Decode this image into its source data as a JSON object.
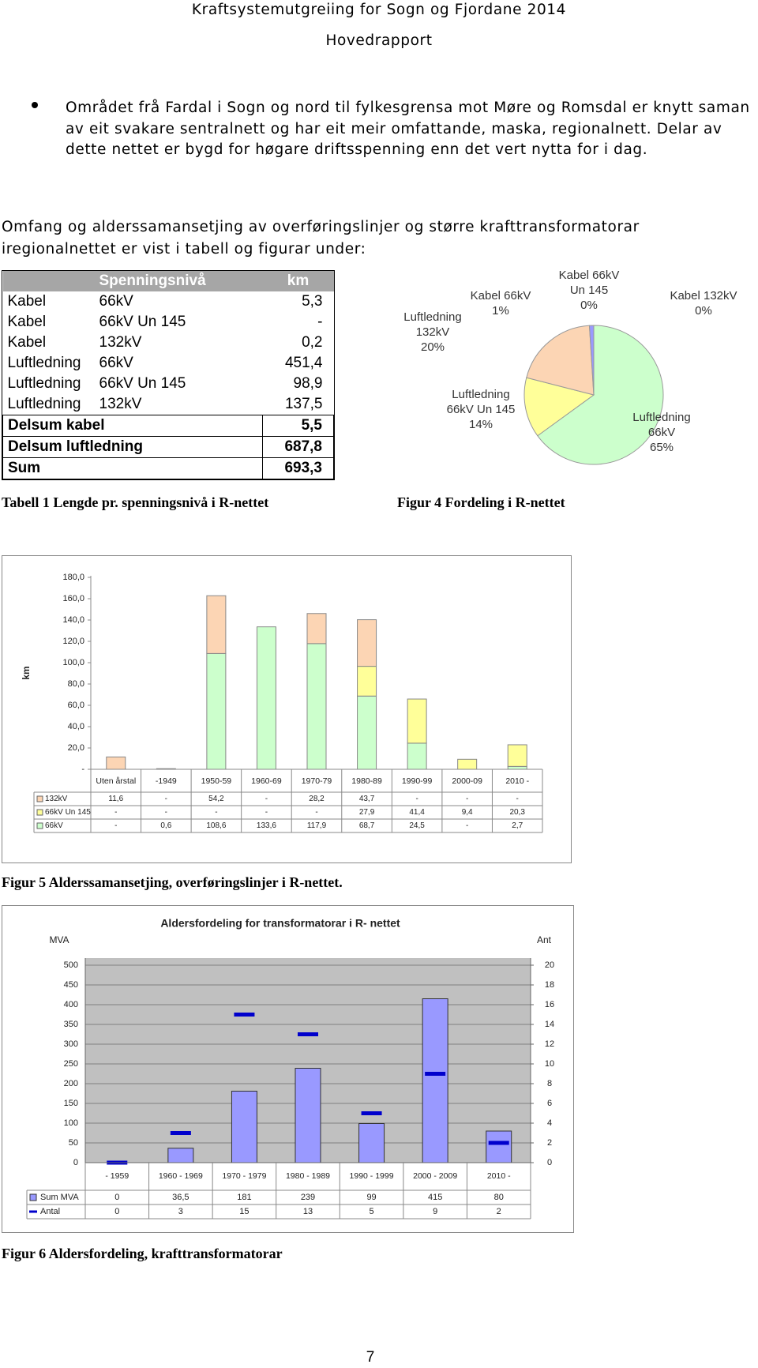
{
  "header": {
    "title": "Kraftsystemutgreiing for Sogn og Fjordane 2014",
    "subtitle": "Hovedrapport"
  },
  "bullet": "Området frå Fardal i Sogn og nord til fylkesgrensa mot Møre og Romsdal er knytt saman av eit svakare sentralnett og har eit meir omfattande, maska, regionalnett. Delar av dette nettet er bygd for høgare driftsspenning enn det vert nytta for i dag.",
  "intro": "Omfang og alderssamansetjing av overføringslinjer og større krafttransformatorar iregionalnettet er vist i tabell og figurar under:",
  "table": {
    "header": [
      "Spenningsnivå",
      "km"
    ],
    "rows": [
      [
        "Kabel",
        "66kV",
        "5,3"
      ],
      [
        "Kabel",
        "66kV Un 145",
        "-"
      ],
      [
        "Kabel",
        "132kV",
        "0,2"
      ],
      [
        "Luftledning",
        "66kV",
        "451,4"
      ],
      [
        "Luftledning",
        "66kV Un 145",
        "98,9"
      ],
      [
        "Luftledning",
        "132kV",
        "137,5"
      ]
    ],
    "totals": [
      [
        "Delsum kabel",
        "5,5"
      ],
      [
        "Delsum luftledning",
        "687,8"
      ],
      [
        "Sum",
        "693,3"
      ]
    ],
    "caption": "Tabell 1 Lengde pr. spenningsnivå i R-nettet"
  },
  "figure4": {
    "type": "pie",
    "caption": "Figur 4 Fordeling i R-nettet",
    "categories": [
      "Luftledning 66kV",
      "Luftledning 66kV Un 145",
      "Luftledning 132kV",
      "Kabel 66kV",
      "Kabel 66kV Un 145",
      "Kabel 132kV"
    ],
    "values": [
      65,
      14,
      20,
      1,
      0,
      0
    ],
    "value_labels": [
      "65%",
      "14%",
      "20%",
      "1%",
      "0%",
      "0%"
    ],
    "colors": [
      "#ccffcc",
      "#ffff99",
      "#fcd5b4",
      "#9999ff",
      "#993366",
      "#ffffcc"
    ]
  },
  "figure5": {
    "type": "stacked_bar",
    "caption": "Figur 5 Alderssamansetjing, overføringslinjer i R-nettet.",
    "ylabel": "km",
    "categories": [
      "Uten årstal",
      "-1949",
      "1950-59",
      "1960-69",
      "1970-79",
      "1980-89",
      "1990-99",
      "2000-09",
      "2010 -"
    ],
    "series": [
      {
        "name": "132kV",
        "color": "#fcd5b4",
        "values": [
          11.6,
          null,
          54.2,
          null,
          28.2,
          43.7,
          null,
          null,
          null
        ],
        "value_labels": [
          "11,6",
          "-",
          "54,2",
          "-",
          "28,2",
          "43,7",
          "-",
          "-",
          "-"
        ]
      },
      {
        "name": "66kV Un 145",
        "color": "#ffff99",
        "values": [
          null,
          null,
          null,
          null,
          null,
          27.9,
          41.4,
          9.4,
          20.3
        ],
        "value_labels": [
          "-",
          "-",
          "-",
          "-",
          "-",
          "27,9",
          "41,4",
          "9,4",
          "20,3"
        ]
      },
      {
        "name": "66kV",
        "color": "#ccffcc",
        "values": [
          null,
          0.6,
          108.6,
          133.6,
          117.9,
          68.7,
          24.5,
          null,
          2.7
        ],
        "value_labels": [
          "-",
          "0,6",
          "108,6",
          "133,6",
          "117,9",
          "68,7",
          "24,5",
          "-",
          "2,7"
        ]
      }
    ],
    "ylim": [
      0,
      180
    ],
    "yticks": [
      {
        "value": 0,
        "label": "-"
      },
      {
        "value": 20,
        "label": "20,0"
      },
      {
        "value": 40,
        "label": "40,0"
      },
      {
        "value": 60,
        "label": "60,0"
      },
      {
        "value": 80,
        "label": "80,0"
      },
      {
        "value": 100,
        "label": "100,0"
      },
      {
        "value": 120,
        "label": "120,0"
      },
      {
        "value": 140,
        "label": "140,0"
      },
      {
        "value": 160,
        "label": "160,0"
      },
      {
        "value": 180,
        "label": "180,0"
      }
    ]
  },
  "figure6": {
    "type": "bar",
    "title": "Aldersfordeling for transformatorar i R- nettet",
    "caption": "Figur 6 Aldersfordeling, krafttransformatorar",
    "ylabel": "MVA",
    "y2label": "Ant",
    "categories": [
      "- 1959",
      "1960 - 1969",
      "1970 - 1979",
      "1980 - 1989",
      "1990 - 1999",
      "2000 - 2009",
      "2010 -"
    ],
    "series": [
      {
        "name": "Sum MVA",
        "color": "#9999ff",
        "values": [
          0,
          36.5,
          181,
          239,
          99,
          415,
          80
        ],
        "value_labels": [
          "0",
          "36,5",
          "181",
          "239",
          "99",
          "415",
          "80"
        ]
      },
      {
        "name": "Antal",
        "color": "#0000cc",
        "axis": "y2",
        "values": [
          0,
          3,
          15,
          13,
          5,
          9,
          2
        ]
      }
    ],
    "ylim": [
      0,
      500
    ],
    "yticks": [
      0,
      50,
      100,
      150,
      200,
      250,
      300,
      350,
      400,
      450,
      500
    ],
    "y2lim": [
      0,
      20
    ],
    "y2ticks": [
      0,
      2,
      4,
      6,
      8,
      10,
      12,
      14,
      16,
      18,
      20
    ],
    "grid": true
  },
  "page_number": "7"
}
